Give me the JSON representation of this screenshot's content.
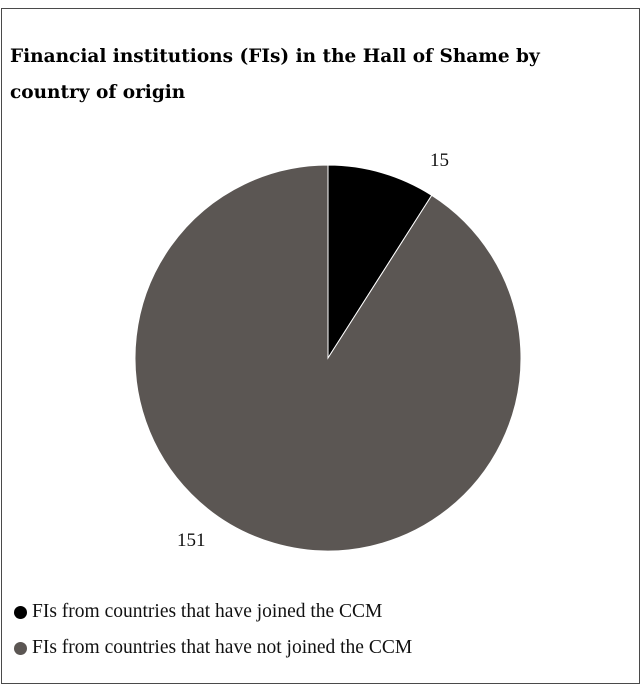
{
  "chart_data": {
    "type": "pie",
    "title": "Financial institutions (FIs) in the Hall of Shame by country of origin",
    "slices": [
      {
        "label": "FIs from countries that have joined the CCM",
        "value": 15,
        "display": "15",
        "color": "#000000"
      },
      {
        "label": "FIs from countries that have not joined the CCM",
        "value": 151,
        "display": "151",
        "color": "#5b5653"
      }
    ],
    "legend_position": "bottom-left"
  }
}
